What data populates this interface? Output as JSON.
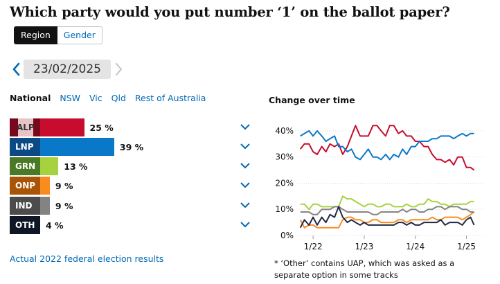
{
  "header": {
    "title": "Which party would you put number ‘1’ on the ballot paper?"
  },
  "toggle": {
    "options": [
      "Region",
      "Gender"
    ],
    "selected": "Region"
  },
  "date_nav": {
    "date": "23/02/2025",
    "prev_icon": "chevron-left-icon",
    "next_icon": "chevron-right-icon"
  },
  "region_tabs": [
    {
      "label": "National",
      "active": true
    },
    {
      "label": "NSW",
      "active": false
    },
    {
      "label": "Vic",
      "active": false
    },
    {
      "label": "Qld",
      "active": false
    },
    {
      "label": "Rest of Australia",
      "active": false
    }
  ],
  "parties": [
    {
      "code": "ALP",
      "value": 25,
      "value_label": "25 %",
      "color": "#c70c2e",
      "dark": "#78091c"
    },
    {
      "code": "LNP",
      "value": 39,
      "value_label": "39 %",
      "color": "#0a78c8",
      "dark": "#0b4a85"
    },
    {
      "code": "GRN",
      "value": 13,
      "value_label": "13 %",
      "color": "#a6d240",
      "dark": "#4a7a26"
    },
    {
      "code": "ONP",
      "value": 9,
      "value_label": "9 %",
      "color": "#fa8c1e",
      "dark": "#a95507"
    },
    {
      "code": "IND",
      "value": 9,
      "value_label": "9 %",
      "color": "#838383",
      "dark": "#4c4c4c"
    },
    {
      "code": "OTH",
      "value": 4,
      "value_label": "4 %",
      "color": "#1f2a44",
      "dark": "#0f1626"
    }
  ],
  "actual_link": "Actual 2022 federal election results",
  "chart_data": {
    "type": "line",
    "title": "Change over time",
    "ylim": [
      0,
      45
    ],
    "yticks": [
      0,
      10,
      20,
      30,
      40
    ],
    "ytick_labels": [
      "0%",
      "10%",
      "20%",
      "30%",
      "40%"
    ],
    "xlim": [
      2021.7,
      2025.25
    ],
    "xticks": [
      2022,
      2023,
      2024,
      2025
    ],
    "xtick_labels": [
      "1/22",
      "1/23",
      "1/24",
      "1/25"
    ],
    "grid": true,
    "series": [
      {
        "name": "ALP",
        "color": "#c70c2e",
        "x": [
          2021.75,
          2021.83,
          2021.92,
          2022.0,
          2022.08,
          2022.17,
          2022.25,
          2022.33,
          2022.42,
          2022.5,
          2022.58,
          2022.67,
          2022.75,
          2022.83,
          2022.92,
          2023.0,
          2023.08,
          2023.17,
          2023.25,
          2023.33,
          2023.42,
          2023.5,
          2023.58,
          2023.67,
          2023.75,
          2023.83,
          2023.92,
          2024.0,
          2024.08,
          2024.17,
          2024.25,
          2024.33,
          2024.42,
          2024.5,
          2024.58,
          2024.67,
          2024.75,
          2024.83,
          2024.92,
          2025.0,
          2025.08,
          2025.15
        ],
        "values": [
          33,
          35,
          35,
          32,
          31,
          34,
          32,
          35,
          34,
          35,
          31,
          34,
          38,
          42,
          38,
          38,
          38,
          42,
          42,
          40,
          38,
          42,
          42,
          39,
          40,
          38,
          38,
          36,
          36,
          34,
          34,
          31,
          29,
          29,
          28,
          29,
          27,
          30,
          30,
          26,
          26,
          25
        ]
      },
      {
        "name": "LNP",
        "color": "#0a78c8",
        "x": [
          2021.75,
          2021.83,
          2021.92,
          2022.0,
          2022.08,
          2022.17,
          2022.25,
          2022.33,
          2022.42,
          2022.5,
          2022.58,
          2022.67,
          2022.75,
          2022.83,
          2022.92,
          2023.0,
          2023.08,
          2023.17,
          2023.25,
          2023.33,
          2023.42,
          2023.5,
          2023.58,
          2023.67,
          2023.75,
          2023.83,
          2023.92,
          2024.0,
          2024.08,
          2024.17,
          2024.25,
          2024.33,
          2024.42,
          2024.5,
          2024.58,
          2024.67,
          2024.75,
          2024.83,
          2024.92,
          2025.0,
          2025.08,
          2025.15
        ],
        "values": [
          38,
          39,
          40,
          38,
          40,
          38,
          36,
          37,
          38,
          34,
          34,
          32,
          33,
          30,
          29,
          31,
          33,
          30,
          30,
          29,
          31,
          29,
          31,
          30,
          33,
          31,
          34,
          34,
          36,
          36,
          36,
          37,
          37,
          38,
          38,
          38,
          37,
          38,
          39,
          38,
          39,
          39
        ]
      },
      {
        "name": "GRN",
        "color": "#a6d240",
        "x": [
          2021.75,
          2021.83,
          2021.92,
          2022.0,
          2022.08,
          2022.17,
          2022.25,
          2022.33,
          2022.42,
          2022.5,
          2022.58,
          2022.67,
          2022.75,
          2022.83,
          2022.92,
          2023.0,
          2023.08,
          2023.17,
          2023.25,
          2023.33,
          2023.42,
          2023.5,
          2023.58,
          2023.67,
          2023.75,
          2023.83,
          2023.92,
          2024.0,
          2024.08,
          2024.17,
          2024.25,
          2024.33,
          2024.42,
          2024.5,
          2024.58,
          2024.67,
          2024.75,
          2024.83,
          2024.92,
          2025.0,
          2025.08,
          2025.15
        ],
        "values": [
          12,
          12,
          10,
          12,
          12,
          11,
          11,
          11,
          11,
          11,
          15,
          14,
          14,
          13,
          12,
          11,
          12,
          12,
          11,
          11,
          12,
          12,
          11,
          11,
          11,
          12,
          11,
          11,
          12,
          12,
          14,
          13,
          13,
          12,
          12,
          11,
          12,
          12,
          12,
          12,
          13,
          13
        ]
      },
      {
        "name": "ONP",
        "color": "#fa8c1e",
        "x": [
          2021.75,
          2021.83,
          2021.92,
          2022.0,
          2022.08,
          2022.17,
          2022.25,
          2022.33,
          2022.42,
          2022.5,
          2022.58,
          2022.67,
          2022.75,
          2022.83,
          2022.92,
          2023.0,
          2023.08,
          2023.17,
          2023.25,
          2023.33,
          2023.42,
          2023.5,
          2023.58,
          2023.67,
          2023.75,
          2023.83,
          2023.92,
          2024.0,
          2024.08,
          2024.17,
          2024.25,
          2024.33,
          2024.42,
          2024.5,
          2024.58,
          2024.67,
          2024.75,
          2024.83,
          2024.92,
          2025.0,
          2025.08,
          2025.15
        ],
        "values": [
          6,
          3,
          4,
          4,
          3,
          3,
          3,
          3,
          3,
          3,
          6,
          7,
          7,
          6,
          6,
          5,
          5,
          6,
          6,
          5,
          5,
          5,
          5,
          6,
          6,
          5,
          6,
          6,
          6,
          6,
          6,
          7,
          6,
          6,
          7,
          7,
          7,
          7,
          6,
          7,
          8,
          9
        ]
      },
      {
        "name": "IND",
        "color": "#838383",
        "x": [
          2021.75,
          2021.83,
          2021.92,
          2022.0,
          2022.08,
          2022.17,
          2022.25,
          2022.33,
          2022.42,
          2022.5,
          2022.58,
          2022.67,
          2022.75,
          2022.83,
          2022.92,
          2023.0,
          2023.08,
          2023.17,
          2023.25,
          2023.33,
          2023.42,
          2023.5,
          2023.58,
          2023.67,
          2023.75,
          2023.83,
          2023.92,
          2024.0,
          2024.08,
          2024.17,
          2024.25,
          2024.33,
          2024.42,
          2024.5,
          2024.58,
          2024.67,
          2024.75,
          2024.83,
          2024.92,
          2025.0,
          2025.08,
          2025.15
        ],
        "values": [
          9,
          9,
          9,
          8,
          8,
          10,
          10,
          10,
          11,
          11,
          10,
          9,
          9,
          9,
          9,
          9,
          9,
          8,
          8,
          9,
          9,
          9,
          9,
          9,
          10,
          9,
          10,
          10,
          9,
          9,
          10,
          10,
          11,
          11,
          10,
          11,
          11,
          11,
          10,
          10,
          9,
          9
        ]
      },
      {
        "name": "OTH",
        "color": "#1f2a44",
        "x": [
          2021.75,
          2021.83,
          2021.92,
          2022.0,
          2022.08,
          2022.17,
          2022.25,
          2022.33,
          2022.42,
          2022.5,
          2022.58,
          2022.67,
          2022.75,
          2022.83,
          2022.92,
          2023.0,
          2023.08,
          2023.17,
          2023.25,
          2023.33,
          2023.42,
          2023.5,
          2023.58,
          2023.67,
          2023.75,
          2023.83,
          2023.92,
          2024.0,
          2024.08,
          2024.17,
          2024.25,
          2024.33,
          2024.42,
          2024.5,
          2024.58,
          2024.67,
          2024.75,
          2024.83,
          2024.92,
          2025.0,
          2025.08,
          2025.15
        ],
        "values": [
          3,
          6,
          4,
          7,
          4,
          7,
          5,
          8,
          7,
          11,
          7,
          5,
          6,
          5,
          4,
          5,
          4,
          4,
          4,
          4,
          4,
          4,
          4,
          5,
          5,
          4,
          5,
          4,
          4,
          5,
          5,
          5,
          5,
          6,
          4,
          5,
          5,
          5,
          4,
          6,
          7,
          4
        ]
      }
    ]
  },
  "footnote": "* ‘Other’ contains UAP, which was asked as a separate option in some tracks"
}
